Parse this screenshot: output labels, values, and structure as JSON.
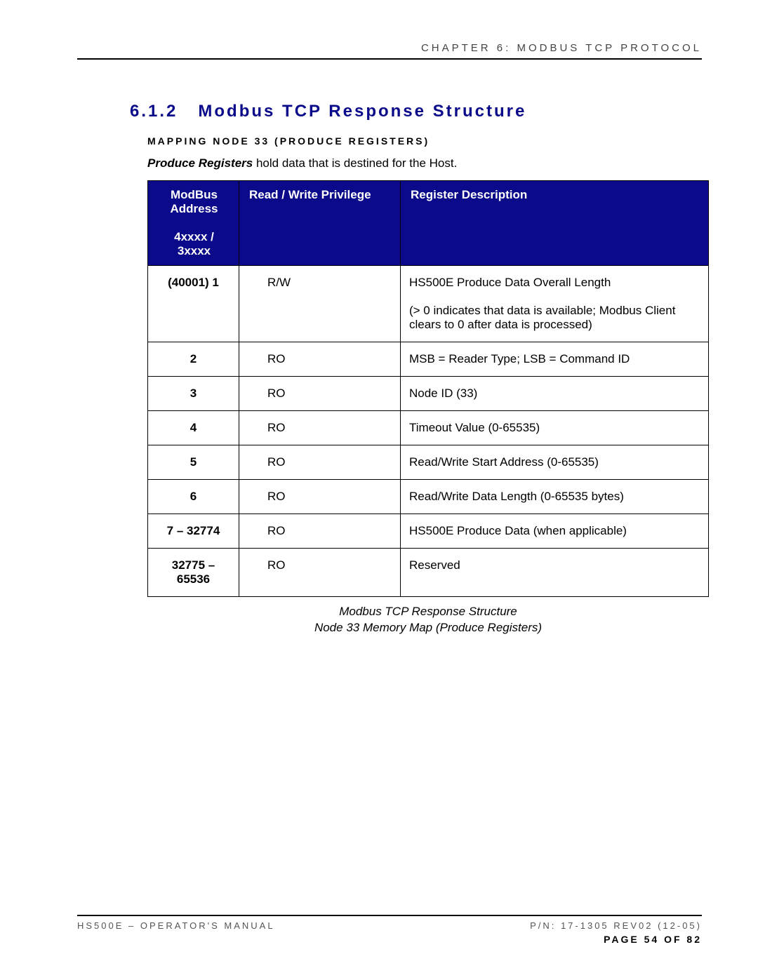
{
  "header": {
    "chapter_label": "CHAPTER 6: MODBUS TCP PROTOCOL"
  },
  "section": {
    "number": "6.1.2",
    "title": "Modbus TCP Response Structure",
    "subheading_prefix": "M",
    "subheading_word1": "APPING",
    "subheading_word2": "N",
    "subheading_word3": "ODE",
    "subheading_num": "33 (P",
    "subheading_word4": "RODUCE",
    "subheading_word5": "R",
    "subheading_word6": "EGISTERS",
    "subheading_close": ")",
    "full_subheading": "MAPPING NODE 33 (PRODUCE REGISTERS)",
    "intro_bold": "Produce Registers",
    "intro_rest": " hold data that is destined for the Host."
  },
  "table": {
    "headers": {
      "col1_line1": "ModBus Address",
      "col1_line2": "4xxxx / 3xxxx",
      "col2": "Read / Write Privilege",
      "col3": "Register Description"
    },
    "rows": [
      {
        "addr": "(40001) 1",
        "rw": "R/W",
        "desc": "HS500E Produce Data Overall Length\n\n(> 0 indicates that data is available; Modbus Client clears to 0 after data is processed)"
      },
      {
        "addr": "2",
        "rw": "RO",
        "desc": "MSB = Reader Type; LSB = Command ID"
      },
      {
        "addr": "3",
        "rw": "RO",
        "desc": "Node ID (33)"
      },
      {
        "addr": "4",
        "rw": "RO",
        "desc": "Timeout Value (0-65535)"
      },
      {
        "addr": "5",
        "rw": "RO",
        "desc": "Read/Write Start Address (0-65535)"
      },
      {
        "addr": "6",
        "rw": "RO",
        "desc": "Read/Write Data Length (0-65535 bytes)"
      },
      {
        "addr": "7 – 32774",
        "rw": "RO",
        "desc": "HS500E Produce Data (when applicable)"
      },
      {
        "addr": "32775 – 65536",
        "rw": "RO",
        "desc": "Reserved"
      }
    ],
    "colors": {
      "header_bg": "#0a0a8a",
      "header_fg": "#ffffff",
      "border": "#000000"
    }
  },
  "caption": {
    "line1": "Modbus TCP Response Structure",
    "line2": "Node 33 Memory Map (Produce Registers)"
  },
  "footer": {
    "left": "HS500E – OPERATOR'S MANUAL",
    "right_line1": "P/N: 17-1305 REV02 (12-05)",
    "right_line2": "PAGE 54 OF 82"
  }
}
